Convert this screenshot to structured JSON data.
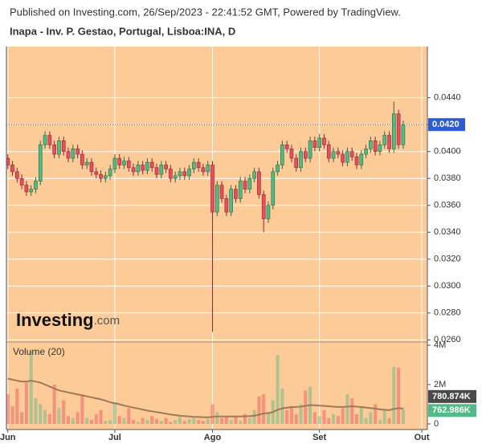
{
  "header": {
    "published": "Published on Investing.com, 26/Sep/2023 - 22:41:52 GMT, Powered by TradingView.",
    "symbol": "Inapa - Inv. P. Gestao, Portugal, Lisboa:INA, D"
  },
  "chart_data": {
    "type": "candlestick",
    "open": [
      0.0395,
      0.039,
      0.0385,
      0.038,
      0.0375,
      0.037,
      0.0372,
      0.0378,
      0.0405,
      0.0412,
      0.0405,
      0.0398,
      0.0408,
      0.04,
      0.0395,
      0.0402,
      0.0398,
      0.039,
      0.0392,
      0.0385,
      0.0383,
      0.038,
      0.0382,
      0.0387,
      0.0395,
      0.039,
      0.0393,
      0.0388,
      0.0385,
      0.039,
      0.0386,
      0.0392,
      0.0388,
      0.0383,
      0.039,
      0.0387,
      0.038,
      0.0382,
      0.0385,
      0.0382,
      0.0387,
      0.0392,
      0.0388,
      0.0385,
      0.039,
      0.0355,
      0.0375,
      0.0365,
      0.0355,
      0.0372,
      0.0365,
      0.0378,
      0.0372,
      0.038,
      0.0385,
      0.0368,
      0.035,
      0.036,
      0.0385,
      0.039,
      0.0405,
      0.0402,
      0.0395,
      0.0388,
      0.04,
      0.0395,
      0.0408,
      0.0403,
      0.041,
      0.0405,
      0.0395,
      0.04,
      0.0398,
      0.0392,
      0.04,
      0.0396,
      0.039,
      0.0398,
      0.0402,
      0.0408,
      0.04,
      0.0405,
      0.0412,
      0.0402,
      0.0428,
      0.0405
    ],
    "high": [
      0.0398,
      0.0393,
      0.0388,
      0.0383,
      0.0378,
      0.0375,
      0.0381,
      0.0408,
      0.0415,
      0.0415,
      0.0408,
      0.0411,
      0.0411,
      0.0403,
      0.0405,
      0.0405,
      0.0401,
      0.0395,
      0.0395,
      0.0388,
      0.0386,
      0.0385,
      0.039,
      0.0398,
      0.0398,
      0.0396,
      0.0396,
      0.0391,
      0.0393,
      0.0393,
      0.0395,
      0.0395,
      0.0391,
      0.0393,
      0.0393,
      0.039,
      0.0385,
      0.0388,
      0.0388,
      0.039,
      0.0395,
      0.0395,
      0.0391,
      0.0393,
      0.0393,
      0.0378,
      0.0378,
      0.0368,
      0.0375,
      0.0375,
      0.0381,
      0.0381,
      0.0383,
      0.0388,
      0.0388,
      0.0371,
      0.0363,
      0.0388,
      0.0393,
      0.0408,
      0.0408,
      0.0405,
      0.0398,
      0.0403,
      0.0403,
      0.0411,
      0.0411,
      0.0413,
      0.0413,
      0.0408,
      0.0403,
      0.0403,
      0.0401,
      0.0403,
      0.0403,
      0.0399,
      0.0401,
      0.0405,
      0.0411,
      0.0411,
      0.0408,
      0.0415,
      0.0415,
      0.0437,
      0.0431,
      0.0423
    ],
    "low": [
      0.0387,
      0.0382,
      0.0377,
      0.0372,
      0.0367,
      0.0367,
      0.0369,
      0.0375,
      0.0402,
      0.0402,
      0.0395,
      0.0395,
      0.0397,
      0.0392,
      0.0392,
      0.0395,
      0.0387,
      0.0387,
      0.0382,
      0.038,
      0.0377,
      0.0377,
      0.0379,
      0.0384,
      0.0387,
      0.0387,
      0.0385,
      0.0382,
      0.0382,
      0.0383,
      0.0383,
      0.0385,
      0.038,
      0.038,
      0.0384,
      0.0377,
      0.0377,
      0.0379,
      0.0379,
      0.0379,
      0.0384,
      0.0385,
      0.0382,
      0.0382,
      0.0266,
      0.0352,
      0.0362,
      0.0352,
      0.0352,
      0.0362,
      0.0362,
      0.0369,
      0.0369,
      0.0377,
      0.0365,
      0.034,
      0.0347,
      0.0357,
      0.0382,
      0.0387,
      0.0399,
      0.0392,
      0.0385,
      0.0385,
      0.0392,
      0.0392,
      0.04,
      0.04,
      0.0402,
      0.0392,
      0.0392,
      0.0395,
      0.0389,
      0.0389,
      0.0393,
      0.0387,
      0.0387,
      0.0395,
      0.0399,
      0.0397,
      0.0397,
      0.0402,
      0.0399,
      0.0399,
      0.0402,
      0.0402
    ],
    "close": [
      0.039,
      0.0385,
      0.038,
      0.0375,
      0.037,
      0.0372,
      0.0378,
      0.0405,
      0.0412,
      0.0405,
      0.0398,
      0.0408,
      0.04,
      0.0395,
      0.0402,
      0.0398,
      0.039,
      0.0392,
      0.0385,
      0.0383,
      0.038,
      0.0382,
      0.0387,
      0.0395,
      0.039,
      0.0393,
      0.0388,
      0.0385,
      0.039,
      0.0386,
      0.0392,
      0.0388,
      0.0383,
      0.039,
      0.0387,
      0.038,
      0.0382,
      0.0385,
      0.0382,
      0.0387,
      0.0392,
      0.0388,
      0.0385,
      0.039,
      0.0355,
      0.0375,
      0.0365,
      0.0355,
      0.0372,
      0.0365,
      0.0378,
      0.0372,
      0.038,
      0.0385,
      0.0368,
      0.035,
      0.036,
      0.0385,
      0.039,
      0.0405,
      0.0402,
      0.0395,
      0.0388,
      0.04,
      0.0395,
      0.0408,
      0.0403,
      0.041,
      0.0405,
      0.0395,
      0.04,
      0.0398,
      0.0392,
      0.04,
      0.0396,
      0.039,
      0.0398,
      0.0402,
      0.0408,
      0.04,
      0.0405,
      0.0412,
      0.0402,
      0.0428,
      0.0405,
      0.042
    ],
    "colors": {
      "up": "#53b987",
      "down": "#eb4d5c",
      "up_border": "#2e6b3f",
      "down_border": "#8a2a32",
      "background": "#fccb98",
      "grid": "#ffffff",
      "ma": "#9c7a5b",
      "last_price": "#2f5bd1"
    },
    "ylim": [
      0.0259,
      0.0478
    ],
    "yticks": [
      {
        "value": 0.044,
        "label": "0.0440"
      },
      {
        "value": 0.042,
        "label": "0.0420"
      },
      {
        "value": 0.04,
        "label": "0.0400"
      },
      {
        "value": 0.038,
        "label": "0.0380"
      },
      {
        "value": 0.036,
        "label": "0.0360"
      },
      {
        "value": 0.034,
        "label": "0.0340"
      },
      {
        "value": 0.032,
        "label": "0.0320"
      },
      {
        "value": 0.03,
        "label": "0.0300"
      },
      {
        "value": 0.028,
        "label": "0.0280"
      },
      {
        "value": 0.026,
        "label": "0.0260"
      }
    ],
    "last_price": {
      "value": 0.042,
      "label": "0.0420"
    },
    "xlim": [
      -0.3,
      90.2
    ],
    "xticks": [
      {
        "value": 0,
        "label": "Jun"
      },
      {
        "value": 23,
        "label": "Jul"
      },
      {
        "value": 44,
        "label": "Ago"
      },
      {
        "value": 67,
        "label": "Set"
      },
      {
        "value": 89,
        "label": "Out"
      }
    ],
    "grid": true,
    "watermark": {
      "brand": "Investing",
      "suffix": ".com"
    },
    "volume": {
      "title": "Volume (20)",
      "values": [
        1500000,
        900000,
        1800000,
        600000,
        2100000,
        3700000,
        1300000,
        1000000,
        700000,
        500000,
        2000000,
        800000,
        1200000,
        400000,
        300000,
        600000,
        1500000,
        300000,
        200000,
        500000,
        700000,
        150000,
        200000,
        1100000,
        400000,
        300000,
        800000,
        200000,
        100000,
        300000,
        200000,
        400000,
        250000,
        150000,
        300000,
        100000,
        200000,
        350000,
        150000,
        250000,
        300000,
        200000,
        150000,
        250000,
        1000000,
        600000,
        300000,
        400000,
        200000,
        350000,
        150000,
        500000,
        300000,
        700000,
        1400000,
        1500000,
        600000,
        1200000,
        3500000,
        1800000,
        700000,
        900000,
        500000,
        1000000,
        1700000,
        1900000,
        600000,
        400000,
        700000,
        300000,
        500000,
        400000,
        800000,
        1500000,
        1300000,
        500000,
        900000,
        300000,
        600000,
        1000000,
        200000,
        700000,
        300000,
        2900000,
        2850000,
        762986
      ],
      "ma": [
        2300000,
        2250000,
        2200000,
        2150000,
        2150000,
        2200000,
        2150000,
        2100000,
        2000000,
        1900000,
        1800000,
        1700000,
        1650000,
        1600000,
        1550000,
        1500000,
        1450000,
        1400000,
        1350000,
        1300000,
        1250000,
        1180000,
        1100000,
        1050000,
        1000000,
        930000,
        880000,
        830000,
        780000,
        730000,
        680000,
        640000,
        600000,
        560000,
        520000,
        480000,
        450000,
        420000,
        400000,
        380000,
        360000,
        350000,
        340000,
        330000,
        360000,
        380000,
        380000,
        380000,
        380000,
        380000,
        380000,
        390000,
        400000,
        420000,
        470000,
        530000,
        550000,
        600000,
        720000,
        790000,
        820000,
        850000,
        860000,
        880000,
        920000,
        960000,
        950000,
        930000,
        920000,
        900000,
        880000,
        860000,
        860000,
        880000,
        900000,
        880000,
        860000,
        830000,
        800000,
        780000,
        740000,
        720000,
        700000,
        760000,
        800000,
        780874
      ],
      "last_value_label": "762.986K",
      "ma_last_label": "780.874K",
      "ylim": [
        -285000,
        4080000
      ],
      "yticks": [
        {
          "value": 4000000,
          "label": "4M"
        },
        {
          "value": 2000000,
          "label": "2M"
        },
        0
      ]
    }
  }
}
